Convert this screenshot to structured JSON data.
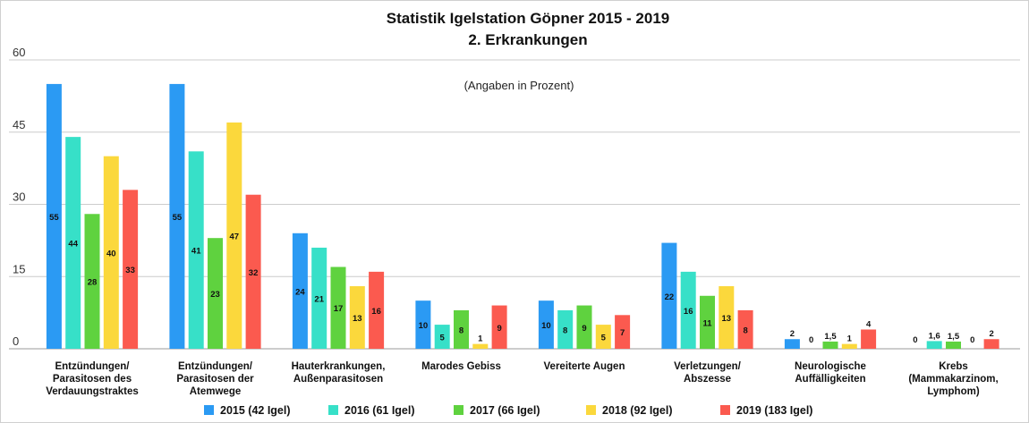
{
  "chart_data": {
    "type": "bar",
    "title": "Statistik Igelstation Göpner 2015 - 2019",
    "subtitle": "2.  Erkrankungen",
    "annotation": "(Angaben in Prozent)",
    "xlabel": "",
    "ylabel": "",
    "ylim": [
      0,
      60
    ],
    "yticks": [
      "0",
      "15",
      "30",
      "45",
      "60"
    ],
    "grid": true,
    "legend_position": "bottom",
    "categories": [
      [
        "Entzündungen/",
        "Parasitosen des",
        "Verdauungstraktes"
      ],
      [
        "Entzündungen/",
        "Parasitosen der",
        "Atemwege"
      ],
      [
        "Hauterkrankungen,",
        "Außenparasitosen"
      ],
      [
        "Marodes Gebiss"
      ],
      [
        "Vereiterte Augen"
      ],
      [
        "Verletzungen/",
        "Abszesse"
      ],
      [
        "Neurologische",
        "Auffälligkeiten"
      ],
      [
        "Krebs",
        "(Mammakarzinom,",
        "Lymphom)"
      ]
    ],
    "series": [
      {
        "name": "2015 (42 Igel)",
        "color": "#2b9af3",
        "values": [
          55,
          55,
          24,
          10,
          10,
          22,
          2,
          0
        ],
        "labels": [
          "55",
          "55",
          "24",
          "10",
          "10",
          "22",
          "2",
          "0"
        ]
      },
      {
        "name": "2016 (61 Igel)",
        "color": "#37e0c8",
        "values": [
          44,
          41,
          21,
          5,
          8,
          16,
          0,
          1.6
        ],
        "labels": [
          "44",
          "41",
          "21",
          "5",
          "8",
          "16",
          "0",
          "1,6"
        ]
      },
      {
        "name": "2017 (66 Igel)",
        "color": "#5fd23f",
        "values": [
          28,
          23,
          17,
          8,
          9,
          11,
          1.5,
          1.5
        ],
        "labels": [
          "28",
          "23",
          "17",
          "8",
          "9",
          "11",
          "1,5",
          "1,5"
        ]
      },
      {
        "name": "2018 (92 Igel)",
        "color": "#fbd83c",
        "values": [
          40,
          47,
          13,
          1,
          5,
          13,
          1,
          0
        ],
        "labels": [
          "40",
          "47",
          "13",
          "1",
          "5",
          "13",
          "1",
          "0"
        ]
      },
      {
        "name": "2019 (183 Igel)",
        "color": "#fb5a4f",
        "values": [
          33,
          32,
          16,
          9,
          7,
          8,
          4,
          2
        ],
        "labels": [
          "33",
          "32",
          "16",
          "9",
          "7",
          "8",
          "4",
          "2"
        ]
      }
    ]
  }
}
